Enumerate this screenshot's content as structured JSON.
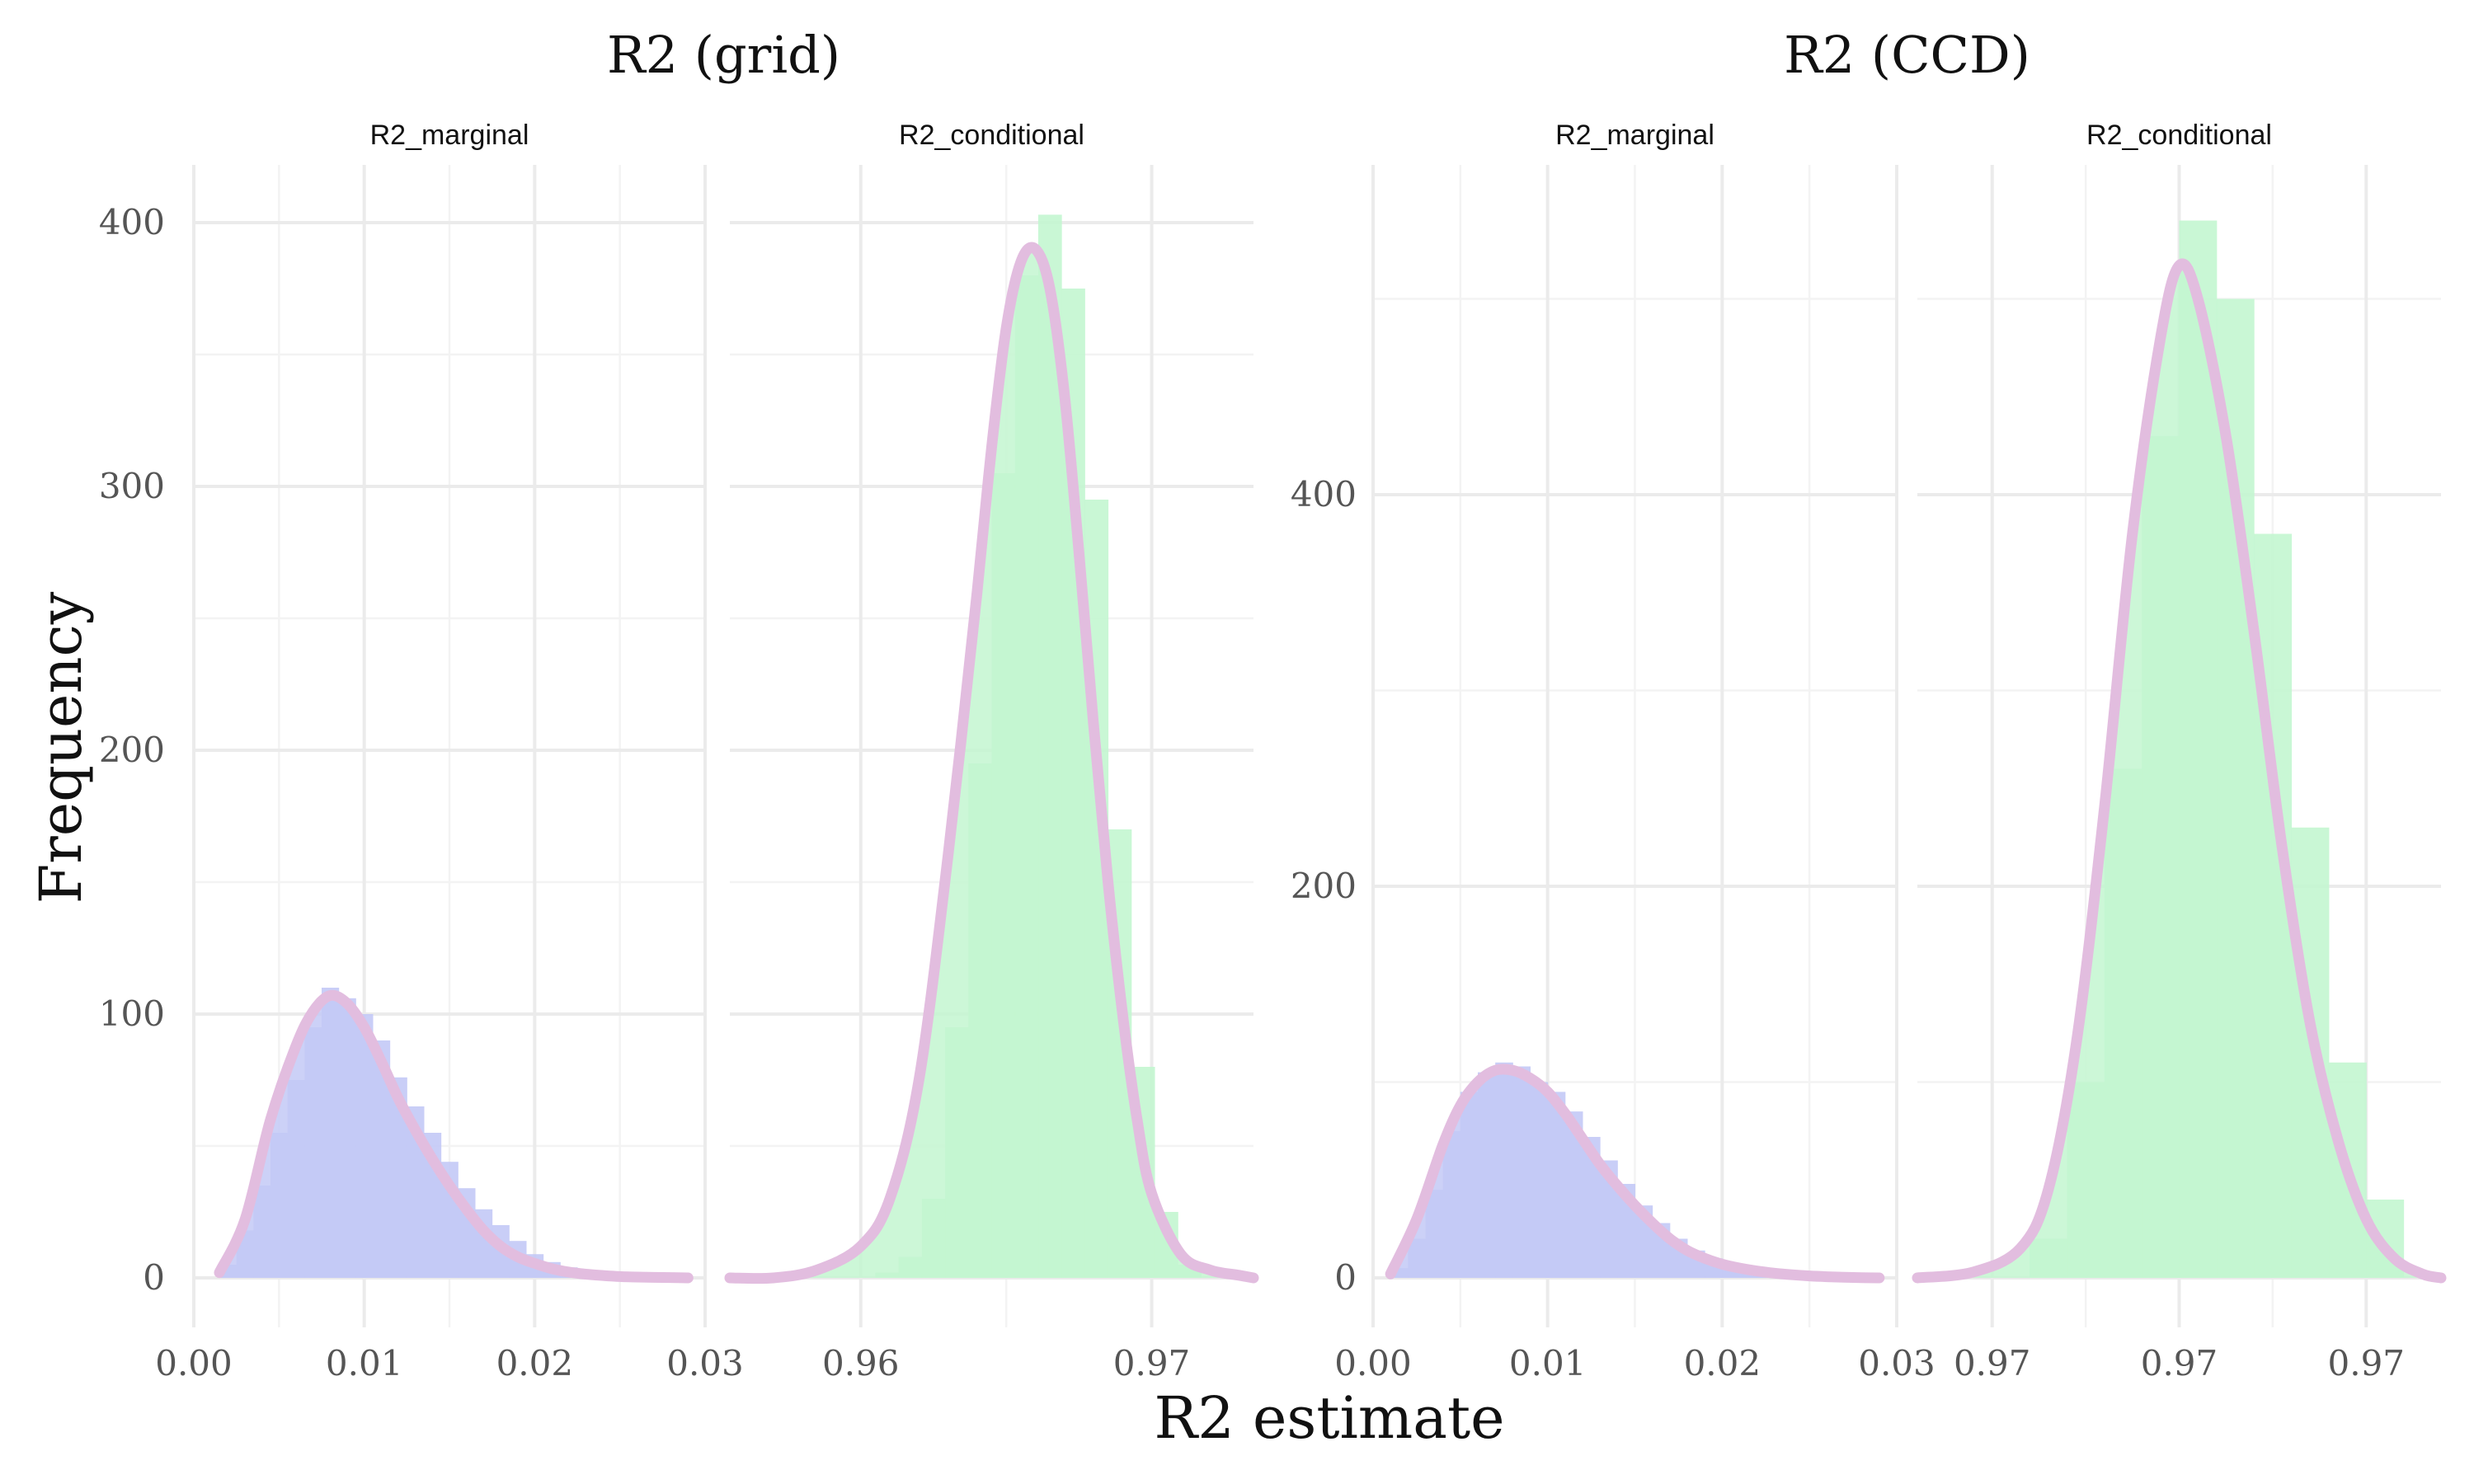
{
  "chart_data": {
    "type": "histogram",
    "xlabel": "R2 estimate",
    "ylabel": "Frequency",
    "grid": true,
    "colors": {
      "marginal": "#c3c9f6",
      "conditional": "#c3f6d0",
      "density": "#e2bddf"
    },
    "groups": [
      {
        "title": "R2 (grid)",
        "ylim": [
          0,
          420
        ],
        "yticks": [
          0,
          100,
          200,
          300,
          400
        ],
        "ytick_labels": [
          "0",
          "100",
          "200",
          "300",
          "400"
        ],
        "facets": [
          {
            "title": "R2_marginal",
            "fill": "#c3c9f6",
            "xlim": [
              0,
              0.03
            ],
            "xticks": [
              0,
              0.01,
              0.02,
              0.03
            ],
            "xtick_labels": [
              "0.00",
              "0.01",
              "0.02",
              "0.03"
            ],
            "bin_edges": [
              0.0015,
              0.0025,
              0.0035,
              0.0045,
              0.0055,
              0.0065,
              0.0075,
              0.0085,
              0.0095,
              0.0105,
              0.0115,
              0.0125,
              0.0135,
              0.0145,
              0.0155,
              0.0165,
              0.0175,
              0.0185,
              0.0195,
              0.0205,
              0.0215,
              0.0225,
              0.0235,
              0.0245,
              0.0255,
              0.0265,
              0.0275,
              0.0285
            ],
            "bins": [
              5,
              18,
              35,
              55,
              75,
              95,
              110,
              106,
              100,
              90,
              76,
              65,
              55,
              44,
              34,
              26,
              20,
              14,
              9,
              6,
              4,
              3,
              2,
              1,
              1,
              0.5,
              0.5
            ],
            "density": {
              "x": [
                0.0015,
                0.003,
                0.0045,
                0.006,
                0.007,
                0.008,
                0.009,
                0.01,
                0.011,
                0.012,
                0.013,
                0.014,
                0.015,
                0.016,
                0.017,
                0.018,
                0.019,
                0.02,
                0.021,
                0.022,
                0.023,
                0.024,
                0.025,
                0.026,
                0.027,
                0.028,
                0.029
              ],
              "y": [
                2,
                22,
                60,
                88,
                101,
                107,
                104,
                95,
                82,
                68,
                56,
                45,
                35,
                26,
                18,
                12,
                8,
                5.5,
                3.5,
                2.2,
                1.4,
                0.9,
                0.5,
                0.3,
                0.2,
                0.1,
                0
              ]
            }
          },
          {
            "title": "R2_conditional",
            "fill": "#c3f6d0",
            "xlim": [
              0.9555,
              0.9735
            ],
            "xticks": [
              0.96,
              0.97
            ],
            "xtick_labels": [
              "0.96",
              "0.97"
            ],
            "minor_xticks": [
              0.955,
              0.965,
              0.975
            ],
            "bin_edges": [
              0.9605,
              0.9613,
              0.9621,
              0.9629,
              0.9637,
              0.9645,
              0.9653,
              0.9661,
              0.9669,
              0.9677,
              0.9685,
              0.9693,
              0.9701,
              0.9709,
              0.9717
            ],
            "bins": [
              2,
              8,
              30,
              95,
              195,
              305,
              380,
              403,
              375,
              295,
              170,
              80,
              25,
              5
            ],
            "density": {
              "x": [
                0.9555,
                0.957,
                0.9585,
                0.96,
                0.961,
                0.962,
                0.963,
                0.964,
                0.9645,
                0.965,
                0.9655,
                0.966,
                0.9665,
                0.967,
                0.9675,
                0.968,
                0.9685,
                0.969,
                0.9695,
                0.97,
                0.971,
                0.972,
                0.973,
                0.9735
              ],
              "y": [
                0,
                0,
                3,
                12,
                30,
                75,
                160,
                260,
                315,
                360,
                385,
                390,
                375,
                335,
                275,
                210,
                150,
                100,
                60,
                32,
                9,
                3,
                1,
                0
              ]
            }
          }
        ]
      },
      {
        "title": "R2 (CCD)",
        "ylim": [
          0,
          560
        ],
        "yticks": [
          0,
          200,
          400
        ],
        "ytick_labels": [
          "0",
          "200",
          "400"
        ],
        "minor_yticks": [
          100,
          300,
          500
        ],
        "facets": [
          {
            "title": "R2_marginal",
            "fill": "#c3c9f6",
            "xlim": [
              0,
              0.03
            ],
            "xticks": [
              0,
              0.01,
              0.02,
              0.03
            ],
            "xtick_labels": [
              "0.00",
              "0.01",
              "0.02",
              "0.03"
            ],
            "bin_edges": [
              0.001,
              0.002,
              0.003,
              0.004,
              0.005,
              0.006,
              0.007,
              0.008,
              0.009,
              0.01,
              0.011,
              0.012,
              0.013,
              0.014,
              0.015,
              0.016,
              0.017,
              0.018,
              0.019,
              0.02,
              0.021,
              0.022,
              0.023,
              0.024,
              0.025,
              0.026,
              0.027,
              0.028,
              0.029
            ],
            "bins": [
              5,
              20,
              45,
              75,
              95,
              105,
              110,
              108,
              100,
              95,
              85,
              72,
              60,
              48,
              37,
              28,
              20,
              14,
              10,
              7,
              5,
              3,
              2,
              1.5,
              1,
              0.5,
              0.5,
              0.3
            ],
            "density": {
              "x": [
                0.001,
                0.0025,
                0.004,
                0.005,
                0.006,
                0.007,
                0.008,
                0.009,
                0.01,
                0.011,
                0.012,
                0.013,
                0.014,
                0.015,
                0.016,
                0.017,
                0.018,
                0.019,
                0.02,
                0.021,
                0.022,
                0.023,
                0.024,
                0.025,
                0.026,
                0.027,
                0.028,
                0.029
              ],
              "y": [
                2,
                30,
                68,
                88,
                100,
                106,
                106,
                102,
                95,
                84,
                71,
                58,
                47,
                37,
                28,
                20,
                14,
                10,
                7,
                5,
                3.5,
                2.4,
                1.6,
                1,
                0.6,
                0.3,
                0.1,
                0
              ]
            }
          },
          {
            "title": "R2_conditional",
            "fill": "#c3f6d0",
            "xlim": [
              0.9672,
              0.9728
            ],
            "xticks": [
              0.968,
              0.97,
              0.972,
              0.974
            ],
            "xtick_labels": [
              "0.97",
              "0.97",
              "0.97",
              "0.97"
            ],
            "minor_xticks": [
              0.967,
              0.969,
              0.971,
              0.973
            ],
            "bin_edges": [
              0.9684,
              0.9688,
              0.9692,
              0.9696,
              0.97,
              0.9704,
              0.9708,
              0.9712,
              0.9716,
              0.972,
              0.9724
            ],
            "bins": [
              20,
              100,
              260,
              430,
              540,
              500,
              380,
              230,
              110,
              40
            ],
            "density": {
              "x": [
                0.9672,
                0.9678,
                0.9683,
                0.9686,
                0.9689,
                0.9692,
                0.9695,
                0.9698,
                0.97,
                0.9702,
                0.9705,
                0.9708,
                0.9711,
                0.9714,
                0.9717,
                0.972,
                0.9723,
                0.9726,
                0.9728
              ],
              "y": [
                0,
                3,
                15,
                45,
                120,
                240,
                380,
                480,
                517,
                500,
                430,
                330,
                220,
                130,
                70,
                30,
                10,
                2,
                0
              ]
            }
          }
        ]
      }
    ]
  }
}
